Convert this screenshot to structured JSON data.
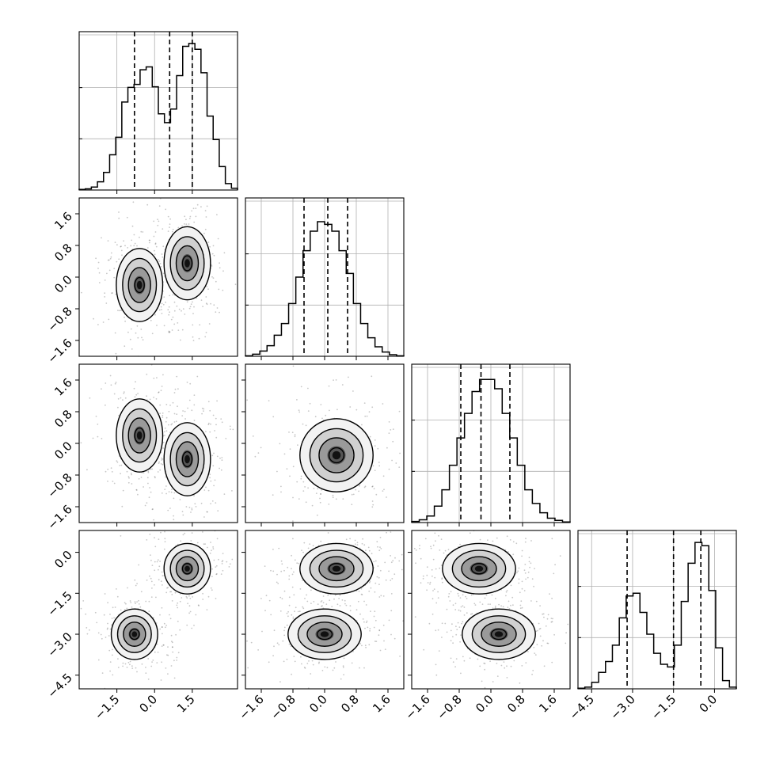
{
  "chart_data": {
    "type": "corner",
    "title": "",
    "grid": true,
    "parameters": [
      {
        "range": [
          -3.0,
          3.3
        ],
        "ticks": [
          -1.5,
          0.0,
          1.5
        ],
        "tick_labels": [
          "−1.5",
          "0.0",
          "1.5"
        ]
      },
      {
        "range": [
          -2.0,
          2.0
        ],
        "ticks": [
          -1.6,
          -0.8,
          0.0,
          0.8,
          1.6
        ],
        "tick_labels": [
          "−1.6",
          "−0.8",
          "0.0",
          "0.8",
          "1.6"
        ]
      },
      {
        "range": [
          -2.0,
          2.0
        ],
        "ticks": [
          -1.6,
          -0.8,
          0.0,
          0.8,
          1.6
        ],
        "tick_labels": [
          "−1.6",
          "−0.8",
          "0.0",
          "0.8",
          "1.6"
        ]
      },
      {
        "range": [
          -5.0,
          0.8
        ],
        "ticks": [
          -4.5,
          -3.0,
          -1.5,
          0.0
        ],
        "tick_labels": [
          "−4.5",
          "−3.0",
          "−1.5",
          "0.0"
        ]
      }
    ],
    "histograms": [
      {
        "parameter": 0,
        "counts": [
          1,
          2,
          5,
          14,
          30,
          60,
          90,
          150,
          175,
          180,
          205,
          210,
          176,
          130,
          115,
          138,
          195,
          245,
          250,
          240,
          200,
          126,
          86,
          40,
          11,
          3
        ],
        "quantiles": [
          -0.8,
          0.6,
          1.5
        ],
        "ylim": [
          0,
          270
        ]
      },
      {
        "parameter": 1,
        "counts": [
          1,
          4,
          10,
          20,
          40,
          62,
          100,
          150,
          200,
          237,
          255,
          250,
          237,
          200,
          157,
          100,
          62,
          35,
          18,
          8,
          3,
          1
        ],
        "quantiles": [
          -0.52,
          0.08,
          0.58
        ],
        "ylim": [
          0,
          300
        ]
      },
      {
        "parameter": 2,
        "counts": [
          2,
          5,
          12,
          30,
          60,
          105,
          155,
          200,
          240,
          262,
          262,
          245,
          200,
          155,
          105,
          60,
          35,
          18,
          8,
          4,
          1
        ],
        "quantiles": [
          -0.76,
          -0.25,
          0.48
        ],
        "ylim": [
          0,
          290
        ]
      },
      {
        "parameter": 3,
        "counts": [
          1,
          3,
          12,
          30,
          50,
          80,
          130,
          170,
          175,
          140,
          100,
          65,
          45,
          40,
          80,
          160,
          230,
          268,
          262,
          180,
          75,
          15,
          3
        ],
        "quantiles": [
          -3.2,
          -1.5,
          -0.5
        ],
        "ylim": [
          0,
          290
        ]
      }
    ],
    "density_panels": [
      {
        "x_param": 0,
        "y_param": 1,
        "modes": [
          {
            "x": -0.6,
            "y": -0.2
          },
          {
            "x": 1.3,
            "y": 0.35
          }
        ]
      },
      {
        "x_param": 0,
        "y_param": 2,
        "modes": [
          {
            "x": -0.6,
            "y": 0.2
          },
          {
            "x": 1.3,
            "y": -0.4
          }
        ]
      },
      {
        "x_param": 1,
        "y_param": 2,
        "modes": [
          {
            "x": 0.3,
            "y": -0.3
          }
        ]
      },
      {
        "x_param": 0,
        "y_param": 3,
        "modes": [
          {
            "x": -0.8,
            "y": -3.0
          },
          {
            "x": 1.3,
            "y": -0.6
          }
        ]
      },
      {
        "x_param": 1,
        "y_param": 3,
        "modes": [
          {
            "x": 0.0,
            "y": -3.0
          },
          {
            "x": 0.3,
            "y": -0.6
          }
        ]
      },
      {
        "x_param": 2,
        "y_param": 3,
        "modes": [
          {
            "x": 0.2,
            "y": -3.0
          },
          {
            "x": -0.3,
            "y": -0.6
          }
        ]
      }
    ]
  }
}
